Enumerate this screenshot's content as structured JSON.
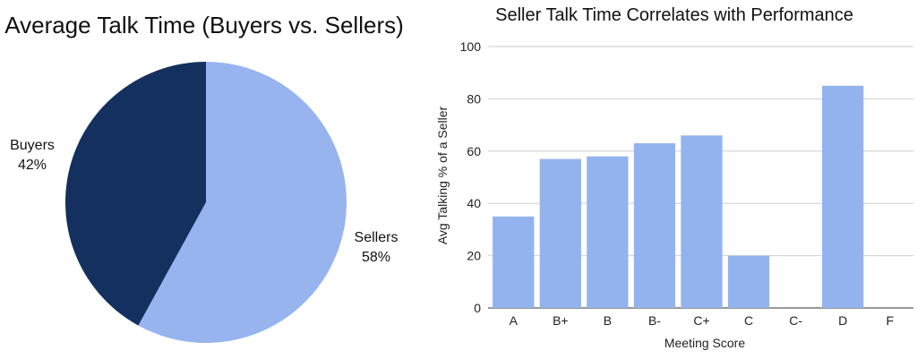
{
  "chart_data": [
    {
      "type": "pie",
      "title": "Average Talk Time (Buyers vs. Sellers)",
      "slices": [
        {
          "label": "Buyers",
          "value": 42,
          "display": "42%",
          "color": "#14305E"
        },
        {
          "label": "Sellers",
          "value": 58,
          "display": "58%",
          "color": "#97B4EE"
        }
      ]
    },
    {
      "type": "bar",
      "title": "Seller Talk Time Correlates with Performance",
      "xlabel": "Meeting Score",
      "ylabel": "Avg Talking % of a Seller",
      "categories": [
        "A",
        "B+",
        "B",
        "B-",
        "C+",
        "C",
        "C-",
        "D",
        "F"
      ],
      "values": [
        35,
        57,
        58,
        63,
        66,
        20,
        null,
        85,
        null
      ],
      "ylim": [
        0,
        100
      ],
      "yticks": [
        0,
        20,
        40,
        60,
        80,
        100
      ],
      "grid": true,
      "bar_color": "#92B3EE"
    }
  ]
}
